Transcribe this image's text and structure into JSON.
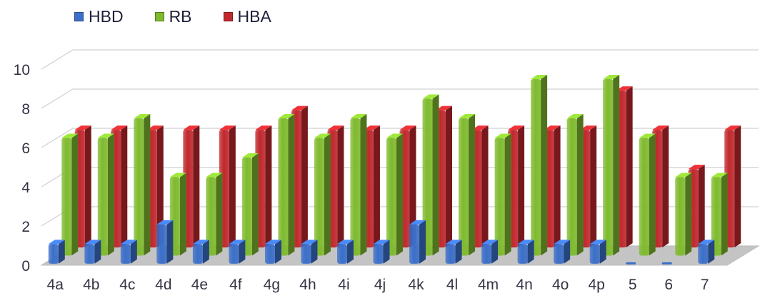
{
  "chart_data": {
    "type": "bar",
    "categories": [
      "4a",
      "4b",
      "4c",
      "4d",
      "4e",
      "4f",
      "4g",
      "4h",
      "4i",
      "4j",
      "4k",
      "4l",
      "4m",
      "4n",
      "4o",
      "4p",
      "5",
      "6",
      "7"
    ],
    "series": [
      {
        "name": "HBD",
        "color": "#3b6fc9",
        "values": [
          1,
          1,
          1,
          2,
          1,
          1,
          1,
          1,
          1,
          1,
          2,
          1,
          1,
          1,
          1,
          1,
          0,
          0,
          1
        ]
      },
      {
        "name": "RB",
        "color": "#7fba2e",
        "values": [
          6,
          6,
          7,
          4,
          4,
          5,
          7,
          6,
          7,
          6,
          8,
          7,
          6,
          9,
          7,
          9,
          6,
          4,
          4
        ]
      },
      {
        "name": "HBA",
        "color": "#c0282d",
        "values": [
          6,
          6,
          6,
          6,
          6,
          6,
          7,
          6,
          6,
          6,
          7,
          6,
          6,
          6,
          6,
          8,
          6,
          4,
          6
        ]
      }
    ],
    "y_ticks": [
      "0",
      "2",
      "4",
      "6",
      "8",
      "10"
    ],
    "ylim": [
      0,
      10
    ],
    "grid": true,
    "legend_position": "top-left",
    "style": "3d-clustered-column"
  }
}
